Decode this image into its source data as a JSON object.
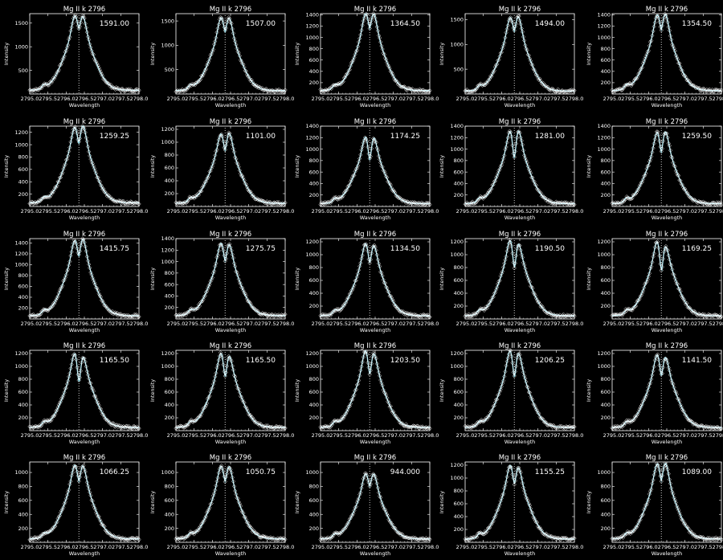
{
  "chart_data": {
    "type": "line",
    "layout": "grid-5x5",
    "panel_title": "Mg II k 2796",
    "xlabel": "Wavelength",
    "ylabel": "Intensity",
    "xlim": [
      2795.0,
      2798.0
    ],
    "x_ticks": [
      "2795.0",
      "2795.5",
      "2796.0",
      "2796.5",
      "2797.0",
      "2797.5",
      "2798.0"
    ],
    "line_center": 2796.35,
    "colors": {
      "background": "#000000",
      "axes": "#ffffff",
      "observed": "#ffffff",
      "fit": "#7fd6e6",
      "markers": "#ffffff",
      "dotted": "#ffffff"
    },
    "panels": [
      {
        "value_label": "1591.00",
        "y_ticks": [
          "500",
          "1000",
          "1500"
        ],
        "ymax": 1700,
        "peak": 1591,
        "blue": 1.0,
        "red": 0.96,
        "dip": 0.9,
        "cont": 80
      },
      {
        "value_label": "1507.00",
        "y_ticks": [
          "500",
          "1000",
          "1500"
        ],
        "ymax": 1650,
        "peak": 1507,
        "blue": 1.0,
        "red": 0.97,
        "dip": 0.88,
        "cont": 70
      },
      {
        "value_label": "1364.50",
        "y_ticks": [
          "200",
          "400",
          "600",
          "800",
          "1000",
          "1200",
          "1400"
        ],
        "ymax": 1420,
        "peak": 1364,
        "blue": 1.0,
        "red": 0.98,
        "dip": 0.88,
        "cont": 60
      },
      {
        "value_label": "1494.00",
        "y_ticks": [
          "500",
          "1000",
          "1500"
        ],
        "ymax": 1620,
        "peak": 1494,
        "blue": 0.96,
        "red": 1.0,
        "dip": 0.88,
        "cont": 60
      },
      {
        "value_label": "1354.50",
        "y_ticks": [
          "200",
          "400",
          "600",
          "800",
          "1000",
          "1200",
          "1400"
        ],
        "ymax": 1420,
        "peak": 1354,
        "blue": 0.97,
        "red": 1.0,
        "dip": 0.87,
        "cont": 60
      },
      {
        "value_label": "1259.25",
        "y_ticks": [
          "200",
          "400",
          "600",
          "800",
          "1000",
          "1200"
        ],
        "ymax": 1300,
        "peak": 1259,
        "blue": 0.92,
        "red": 1.0,
        "dip": 0.84,
        "cont": 60
      },
      {
        "value_label": "1101.00",
        "y_ticks": [
          "200",
          "400",
          "600",
          "800",
          "1000",
          "1200"
        ],
        "ymax": 1250,
        "peak": 1101,
        "blue": 0.95,
        "red": 1.0,
        "dip": 0.82,
        "cont": 50
      },
      {
        "value_label": "1174.25",
        "y_ticks": [
          "200",
          "400",
          "600",
          "800",
          "1000",
          "1200",
          "1400"
        ],
        "ymax": 1400,
        "peak": 1174,
        "blue": 1.0,
        "red": 0.94,
        "dip": 0.72,
        "cont": 50
      },
      {
        "value_label": "1281.00",
        "y_ticks": [
          "200",
          "400",
          "600",
          "800",
          "1000",
          "1200",
          "1400"
        ],
        "ymax": 1400,
        "peak": 1281,
        "blue": 0.98,
        "red": 1.0,
        "dip": 0.68,
        "cont": 50
      },
      {
        "value_label": "1259.50",
        "y_ticks": [
          "200",
          "400",
          "600",
          "800",
          "1000",
          "1200",
          "1400"
        ],
        "ymax": 1400,
        "peak": 1259,
        "blue": 0.96,
        "red": 1.0,
        "dip": 0.78,
        "cont": 50
      },
      {
        "value_label": "1415.75",
        "y_ticks": [
          "200",
          "400",
          "600",
          "800",
          "1000",
          "1200",
          "1400"
        ],
        "ymax": 1480,
        "peak": 1415,
        "blue": 0.93,
        "red": 1.0,
        "dip": 0.85,
        "cont": 60
      },
      {
        "value_label": "1275.75",
        "y_ticks": [
          "200",
          "400",
          "600",
          "800",
          "1000",
          "1200",
          "1400"
        ],
        "ymax": 1400,
        "peak": 1275,
        "blue": 1.0,
        "red": 0.92,
        "dip": 0.82,
        "cont": 60
      },
      {
        "value_label": "1134.50",
        "y_ticks": [
          "200",
          "400",
          "600",
          "800",
          "1000",
          "1200"
        ],
        "ymax": 1250,
        "peak": 1134,
        "blue": 1.0,
        "red": 0.88,
        "dip": 0.8,
        "cont": 50
      },
      {
        "value_label": "1190.50",
        "y_ticks": [
          "200",
          "400",
          "600",
          "800",
          "1000",
          "1200"
        ],
        "ymax": 1250,
        "peak": 1190,
        "blue": 1.0,
        "red": 0.78,
        "dip": 0.7,
        "cont": 50
      },
      {
        "value_label": "1169.25",
        "y_ticks": [
          "200",
          "400",
          "600",
          "800",
          "1000",
          "1200"
        ],
        "ymax": 1250,
        "peak": 1169,
        "blue": 1.0,
        "red": 0.72,
        "dip": 0.68,
        "cont": 50
      },
      {
        "value_label": "1165.50",
        "y_ticks": [
          "200",
          "400",
          "600",
          "800",
          "1000",
          "1200"
        ],
        "ymax": 1250,
        "peak": 1165,
        "blue": 1.0,
        "red": 0.8,
        "dip": 0.68,
        "cont": 50
      },
      {
        "value_label": "1165.50",
        "y_ticks": [
          "200",
          "400",
          "600",
          "800",
          "1000",
          "1200"
        ],
        "ymax": 1250,
        "peak": 1165,
        "blue": 1.0,
        "red": 0.82,
        "dip": 0.75,
        "cont": 50
      },
      {
        "value_label": "1203.50",
        "y_ticks": [
          "200",
          "400",
          "600",
          "800",
          "1000",
          "1200"
        ],
        "ymax": 1250,
        "peak": 1203,
        "blue": 1.0,
        "red": 0.84,
        "dip": 0.76,
        "cont": 50
      },
      {
        "value_label": "1206.25",
        "y_ticks": [
          "200",
          "400",
          "600",
          "800",
          "1000",
          "1200"
        ],
        "ymax": 1250,
        "peak": 1206,
        "blue": 1.0,
        "red": 0.85,
        "dip": 0.72,
        "cont": 50
      },
      {
        "value_label": "1141.50",
        "y_ticks": [
          "200",
          "400",
          "600",
          "800",
          "1000",
          "1200"
        ],
        "ymax": 1250,
        "peak": 1141,
        "blue": 1.0,
        "red": 0.85,
        "dip": 0.78,
        "cont": 50
      },
      {
        "value_label": "1066.25",
        "y_ticks": [
          "200",
          "400",
          "600",
          "800",
          "1000"
        ],
        "ymax": 1150,
        "peak": 1066,
        "blue": 1.0,
        "red": 0.95,
        "dip": 0.85,
        "cont": 50
      },
      {
        "value_label": "1050.75",
        "y_ticks": [
          "200",
          "400",
          "600",
          "800",
          "1000"
        ],
        "ymax": 1150,
        "peak": 1050,
        "blue": 1.0,
        "red": 0.96,
        "dip": 0.86,
        "cont": 50
      },
      {
        "value_label": "944.000",
        "y_ticks": [
          "200",
          "400",
          "600",
          "800",
          "1000"
        ],
        "ymax": 1150,
        "peak": 944,
        "blue": 1.0,
        "red": 0.98,
        "dip": 0.88,
        "cont": 50
      },
      {
        "value_label": "1155.25",
        "y_ticks": [
          "200",
          "400",
          "600",
          "800",
          "1000",
          "1200"
        ],
        "ymax": 1250,
        "peak": 1155,
        "blue": 1.0,
        "red": 0.86,
        "dip": 0.82,
        "cont": 50
      },
      {
        "value_label": "1089.00",
        "y_ticks": [
          "200",
          "400",
          "600",
          "800",
          "1000"
        ],
        "ymax": 1150,
        "peak": 1089,
        "blue": 0.98,
        "red": 1.0,
        "dip": 0.84,
        "cont": 50
      }
    ]
  }
}
